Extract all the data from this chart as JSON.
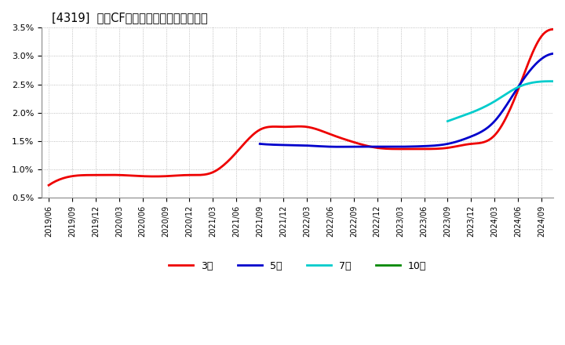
{
  "title": "[4319]  営業CFマージンの標準偏差の推移",
  "ylim": [
    0.005,
    0.035
  ],
  "yticks": [
    0.005,
    0.01,
    0.015,
    0.02,
    0.025,
    0.03,
    0.035
  ],
  "ytick_labels": [
    "0.5%",
    "1.0%",
    "1.5%",
    "2.0%",
    "2.5%",
    "3.0%",
    "3.5%"
  ],
  "background_color": "#ffffff",
  "plot_bg_color": "#ffffff",
  "grid_color": "#999999",
  "x_date_labels": [
    "2019/06",
    "2019/09",
    "2019/12",
    "2020/03",
    "2020/06",
    "2020/09",
    "2020/12",
    "2021/03",
    "2021/06",
    "2021/09",
    "2021/12",
    "2022/03",
    "2022/06",
    "2022/09",
    "2022/12",
    "2023/03",
    "2023/06",
    "2023/09",
    "2023/12",
    "2024/03",
    "2024/06",
    "2024/09"
  ],
  "series_3year": {
    "color": "#ee0000",
    "label": "3年",
    "x": [
      0,
      1,
      2,
      3,
      4,
      5,
      6,
      7,
      8,
      9,
      10,
      11,
      12,
      13,
      14,
      15,
      16,
      17,
      18,
      19
    ],
    "y": [
      0.0072,
      0.0088,
      0.009,
      0.009,
      0.0088,
      0.0088,
      0.009,
      0.0095,
      0.0125,
      0.0165,
      0.0175,
      0.0175,
      0.0165,
      0.015,
      0.0138,
      0.0137,
      0.0138,
      0.014,
      0.0155,
      0.0175
    ]
  },
  "series_3year_b": {
    "color": "#ee0000",
    "x": [
      15,
      16,
      17,
      18,
      19,
      20,
      21
    ],
    "y": [
      0.0137,
      0.0138,
      0.0148,
      0.0165,
      0.0205,
      0.0265,
      0.031
    ]
  },
  "series_3year_peak": {
    "color": "#ee0000",
    "x": [
      19,
      20,
      21,
      22
    ],
    "y": [
      0.0205,
      0.0295,
      0.034,
      0.033
    ]
  },
  "series_5year": {
    "color": "#0000cc",
    "label": "5年",
    "x": [
      9,
      10,
      11,
      12,
      13,
      14,
      15,
      16,
      17,
      18,
      19,
      20,
      21
    ],
    "y": [
      0.0145,
      0.0143,
      0.0142,
      0.014,
      0.014,
      0.014,
      0.014,
      0.0141,
      0.0145,
      0.0158,
      0.0185,
      0.0245,
      0.0298
    ]
  },
  "series_7year": {
    "color": "#00cccc",
    "label": "7年",
    "x": [
      17,
      18,
      19,
      20,
      21
    ],
    "y": [
      0.0185,
      0.02,
      0.022,
      0.0248,
      0.0255
    ]
  },
  "series_10year": {
    "color": "#008800",
    "label": "10年",
    "x": [],
    "y": []
  },
  "legend_labels": [
    "3年",
    "5年",
    "7年",
    "10年"
  ],
  "legend_colors": [
    "#ee0000",
    "#0000cc",
    "#00cccc",
    "#008800"
  ]
}
